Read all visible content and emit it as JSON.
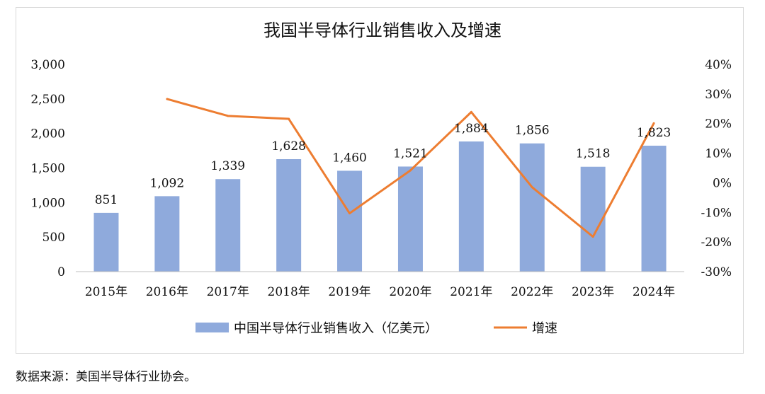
{
  "chart_data": {
    "type": "bar",
    "title": "我国半导体行业销售收入及增速",
    "categories": [
      "2015年",
      "2016年",
      "2017年",
      "2018年",
      "2019年",
      "2020年",
      "2021年",
      "2022年",
      "2023年",
      "2024年"
    ],
    "series": [
      {
        "name": "中国半导体行业销售收入（亿美元）",
        "type": "bar",
        "axis": "left",
        "color": "#8faadc",
        "values": [
          851,
          1092,
          1339,
          1628,
          1460,
          1521,
          1884,
          1856,
          1518,
          1823
        ],
        "data_labels": [
          "851",
          "1,092",
          "1,339",
          "1,628",
          "1,460",
          "1,521",
          "1,884",
          "1,856",
          "1,518",
          "1,823"
        ]
      },
      {
        "name": "增速",
        "type": "line",
        "axis": "right",
        "color": "#ed7d31",
        "values": [
          null,
          28.3,
          22.6,
          21.6,
          -10.3,
          4.2,
          23.9,
          -1.5,
          -18.2,
          20.1
        ]
      }
    ],
    "y_left": {
      "min": 0,
      "max": 3000,
      "step": 500,
      "tick_labels": [
        "0",
        "500",
        "1,000",
        "1,500",
        "2,000",
        "2,500",
        "3,000"
      ]
    },
    "y_right": {
      "min": -30,
      "max": 40,
      "step": 10,
      "tick_labels": [
        "-30%",
        "-20%",
        "-10%",
        "0%",
        "10%",
        "20%",
        "30%",
        "40%"
      ]
    },
    "legend_position": "bottom",
    "grid": false
  },
  "source_note": "数据来源：美国半导体行业协会。"
}
